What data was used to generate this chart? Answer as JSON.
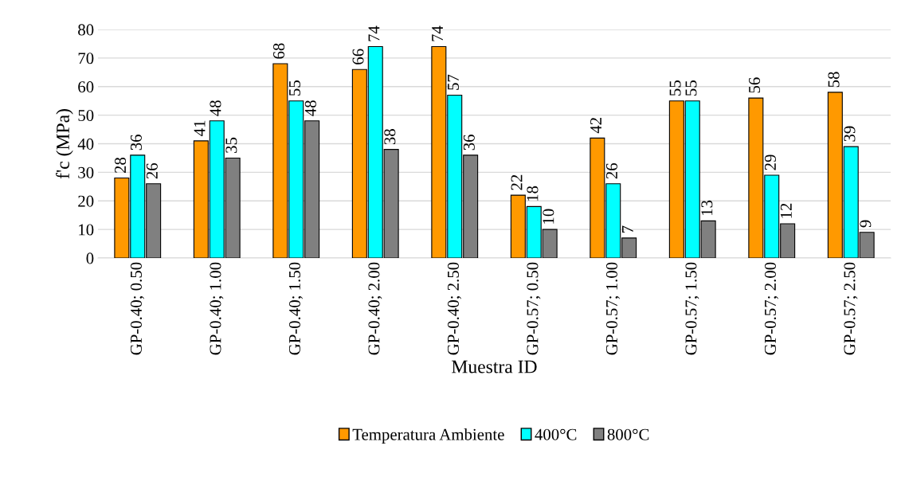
{
  "chart_data": {
    "type": "bar",
    "xlabel": "Muestra ID",
    "ylabel": "f'c (MPa)",
    "categories": [
      "GP-0.40; 0.50",
      "GP-0.40; 1.00",
      "GP-0.40; 1.50",
      "GP-0.40; 2.00",
      "GP-0.40; 2.50",
      "GP-0.57; 0.50",
      "GP-0.57; 1.00",
      "GP-0.57; 1.50",
      "GP-0.57; 2.00",
      "GP-0.57; 2.50"
    ],
    "series": [
      {
        "name": "Temperatura Ambiente",
        "color": "#ff9900",
        "values": [
          28,
          41,
          68,
          66,
          74,
          22,
          42,
          55,
          56,
          58
        ]
      },
      {
        "name": "400°C",
        "color": "#00ffff",
        "values": [
          36,
          48,
          55,
          74,
          57,
          18,
          26,
          55,
          29,
          39
        ]
      },
      {
        "name": "800°C",
        "color": "#808080",
        "values": [
          26,
          35,
          48,
          38,
          36,
          10,
          7,
          13,
          12,
          9
        ]
      }
    ],
    "ylim": [
      0,
      80
    ],
    "yticks": [
      0,
      10,
      20,
      30,
      40,
      50,
      60,
      70,
      80
    ],
    "grid": "y",
    "legend": "bottom",
    "data_labels": true
  }
}
